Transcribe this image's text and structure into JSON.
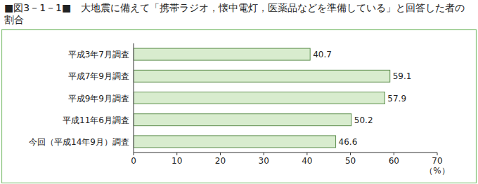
{
  "chart_data": {
    "type": "bar",
    "orientation": "horizontal",
    "title": "■図3－1－1■　大地震に備えて「携帯ラジオ，懐中電灯，医薬品などを準備している」と回答した者の割合",
    "categories": [
      "平成3年7月調査",
      "平成7年9月調査",
      "平成9年9月調査",
      "平成11年6月調査",
      "今回（平成14年9月）調査"
    ],
    "values": [
      40.7,
      59.1,
      57.9,
      50.2,
      46.6
    ],
    "color": "#d8ecce",
    "x_label": "（%）",
    "xlim": [
      0,
      70
    ],
    "xticks": [
      0,
      10,
      20,
      30,
      40,
      50,
      60,
      70
    ],
    "grid": false,
    "data_labels": true
  }
}
